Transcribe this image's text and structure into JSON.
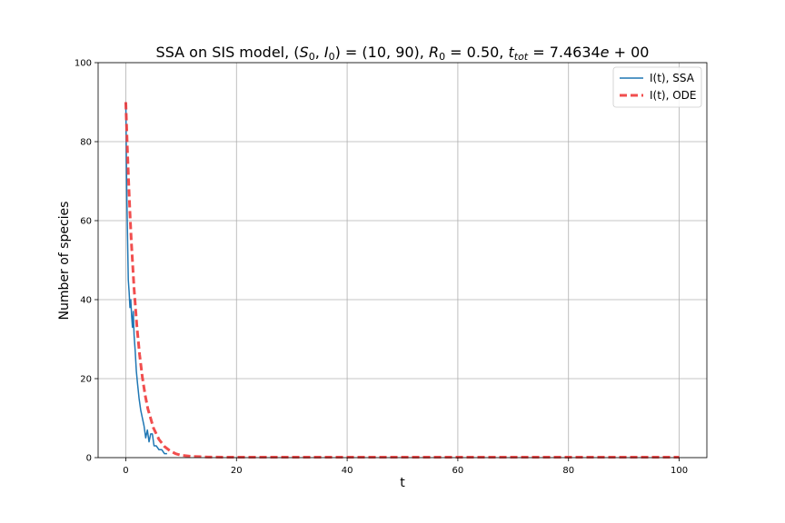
{
  "chart_data": {
    "type": "line",
    "title": "SSA on SIS model, (S₀, I₀) = (10, 90), R₀ = 0.50, t_tot = 7.4634e + 00",
    "title_parts": {
      "lead": "SSA on SIS model, (",
      "s0": "S",
      "sub0": "0",
      "comma1": ", ",
      "i0": "I",
      "sub1": "0",
      "vals": ") = (10, 90), ",
      "r0": "R",
      "sub2": "0",
      "r0val": " = 0.50, ",
      "t": "t",
      "sub3": "tot",
      "tval": " = 7.4634",
      "e": "e",
      "tail": " + 00"
    },
    "xlabel": "t",
    "ylabel": "Number of species",
    "xlim": [
      -5,
      105
    ],
    "ylim": [
      0,
      100
    ],
    "xticks": [
      0,
      20,
      40,
      60,
      80,
      100
    ],
    "yticks": [
      0,
      20,
      40,
      60,
      80,
      100
    ],
    "grid": true,
    "legend_position": "top-right",
    "series": [
      {
        "name": "I(t), SSA",
        "color": "#1f77b4",
        "style": "solid",
        "x": [
          0,
          0.03,
          0.06,
          0.1,
          0.15,
          0.2,
          0.3,
          0.45,
          0.6,
          0.75,
          0.9,
          1.05,
          1.2,
          1.35,
          1.5,
          1.7,
          1.9,
          2.1,
          2.4,
          2.7,
          3.0,
          3.3,
          3.6,
          3.9,
          4.2,
          4.5,
          4.8,
          5.1,
          5.5,
          6.0,
          6.5,
          7.0,
          7.4634
        ],
        "y": [
          90,
          87,
          82,
          76,
          70,
          65,
          57,
          45,
          42,
          38,
          40,
          36,
          33,
          37,
          31,
          27,
          22,
          19,
          15,
          12,
          10,
          8,
          5,
          7,
          4,
          6,
          6,
          3,
          3,
          2,
          2,
          1,
          1
        ]
      },
      {
        "name": "I(t), ODE",
        "color": "#f03b3b",
        "style": "dashed",
        "x": [
          0,
          0.25,
          0.5,
          0.75,
          1,
          1.5,
          2,
          2.5,
          3,
          3.5,
          4,
          5,
          6,
          7,
          8,
          9,
          10,
          12,
          15,
          20,
          30,
          40,
          50,
          60,
          70,
          80,
          90,
          100
        ],
        "y": [
          90,
          79.5,
          70.2,
          62,
          54.7,
          42.7,
          33.3,
          26,
          20.3,
          15.8,
          12.3,
          7.5,
          4.6,
          2.8,
          1.7,
          1.0,
          0.6,
          0.3,
          0.15,
          0.1,
          0.1,
          0.1,
          0.1,
          0.1,
          0.1,
          0.1,
          0.1,
          0.1
        ]
      }
    ]
  }
}
